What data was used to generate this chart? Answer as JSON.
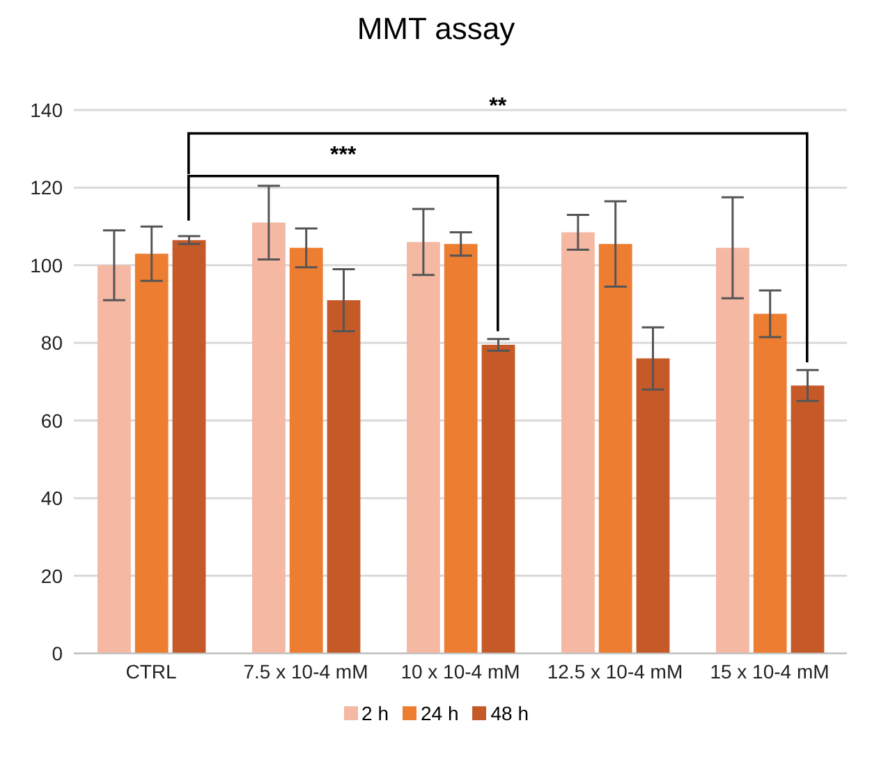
{
  "chart_data": {
    "type": "bar",
    "title": "MMT assay",
    "categories": [
      "CTRL",
      "7.5 x 10-4 mM",
      "10 x 10-4 mM",
      "12.5 x 10-4 mM",
      "15 x 10-4 mM"
    ],
    "series": [
      {
        "name": "2 h",
        "color": "#f4b8a3",
        "values": [
          100,
          111,
          106,
          108.5,
          104.5
        ],
        "errors": [
          9,
          9.5,
          8.5,
          4.5,
          13
        ]
      },
      {
        "name": "24 h",
        "color": "#ed7d31",
        "values": [
          103,
          104.5,
          105.5,
          105.5,
          87.5
        ],
        "errors": [
          7,
          5,
          3,
          11,
          6
        ]
      },
      {
        "name": "48 h",
        "color": "#c55a28",
        "values": [
          106.5,
          91,
          79.5,
          76,
          69
        ],
        "errors": [
          1,
          8,
          1.5,
          8,
          4
        ]
      }
    ],
    "ylim": [
      0,
      140
    ],
    "yticks": [
      0,
      20,
      40,
      60,
      80,
      100,
      120,
      140
    ],
    "grid": "y",
    "legend": "bottom",
    "annotations": [
      "***",
      "**"
    ]
  }
}
